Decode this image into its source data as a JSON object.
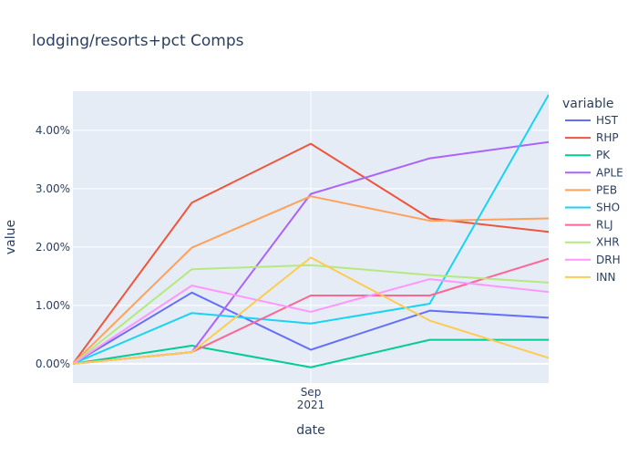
{
  "chart_data": {
    "type": "line",
    "title": "lodging/resorts+pct Comps",
    "xlabel": "date",
    "ylabel": "value",
    "x_tick_labels": [
      {
        "line1": "Sep",
        "line2": "2021"
      }
    ],
    "y_ticks": [
      0,
      1,
      2,
      3,
      4
    ],
    "y_tick_labels": [
      "0.00%",
      "1.00%",
      "2.00%",
      "3.00%",
      "4.00%"
    ],
    "ylim": [
      -0.33,
      4.67
    ],
    "x_points": 5,
    "legend_title": "variable",
    "legend_position": "right",
    "grid": true,
    "series": [
      {
        "name": "HST",
        "color": "#636efa",
        "values": [
          0,
          1.22,
          0.24,
          0.91,
          0.79
        ]
      },
      {
        "name": "RHP",
        "color": "#EF553B",
        "values": [
          0,
          2.76,
          3.77,
          2.49,
          2.26
        ]
      },
      {
        "name": "PK",
        "color": "#00cc96",
        "values": [
          0,
          0.31,
          -0.06,
          0.41,
          0.41
        ]
      },
      {
        "name": "APLE",
        "color": "#ab63fa",
        "values": [
          0,
          0.2,
          2.91,
          3.52,
          3.8
        ]
      },
      {
        "name": "PEB",
        "color": "#FFA15A",
        "values": [
          0,
          1.99,
          2.87,
          2.45,
          2.49
        ]
      },
      {
        "name": "SHO",
        "color": "#19d3f3",
        "values": [
          0,
          0.87,
          0.69,
          1.03,
          4.61
        ]
      },
      {
        "name": "RLJ",
        "color": "#FF6692",
        "values": [
          0,
          0.2,
          1.17,
          1.17,
          1.8
        ]
      },
      {
        "name": "XHR",
        "color": "#B6E880",
        "values": [
          0,
          1.62,
          1.69,
          1.52,
          1.39
        ]
      },
      {
        "name": "DRH",
        "color": "#FF97FF",
        "values": [
          0,
          1.34,
          0.89,
          1.45,
          1.23
        ]
      },
      {
        "name": "INN",
        "color": "#FECB52",
        "values": [
          0,
          0.2,
          1.82,
          0.74,
          0.1
        ]
      }
    ]
  }
}
